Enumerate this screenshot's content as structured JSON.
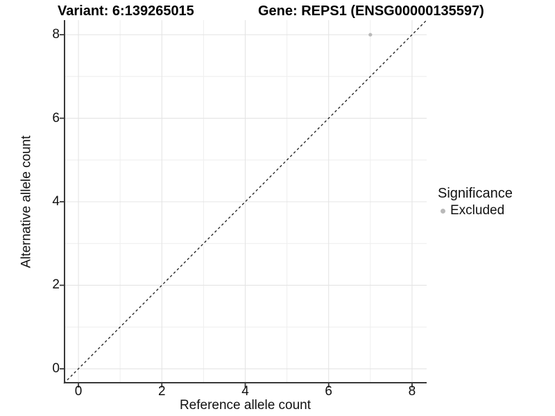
{
  "header": {
    "variant_title": "Variant: 6:139265015",
    "gene_title": "Gene: REPS1 (ENSG00000135597)"
  },
  "chart_data": {
    "type": "scatter",
    "xlabel": "Reference allele count",
    "ylabel": "Alternative allele count",
    "xlim": [
      -0.35,
      8.35
    ],
    "ylim": [
      -0.35,
      8.35
    ],
    "x_ticks": [
      0,
      2,
      4,
      6,
      8
    ],
    "y_ticks": [
      0,
      2,
      4,
      6,
      8
    ],
    "x_minor_grid": [
      1,
      3,
      5,
      7
    ],
    "y_minor_grid": [
      1,
      3,
      5,
      7
    ],
    "grid": "on",
    "points": [
      {
        "x": 7,
        "y": 8,
        "significance": "Excluded"
      }
    ],
    "identity_line": {
      "style": "dashed",
      "from": [
        -0.35,
        -0.35
      ],
      "to": [
        8.35,
        8.35
      ],
      "color": "#1a1a1a"
    },
    "legend": {
      "title": "Significance",
      "position": "right",
      "entries": [
        {
          "label": "Excluded",
          "color": "#b9b9b9"
        }
      ]
    },
    "colors": {
      "point": "#b9b9b9",
      "grid_major": "#e4e4e4",
      "grid_minor": "#eeeeee",
      "axis": "#383838",
      "background": "#ffffff"
    }
  }
}
